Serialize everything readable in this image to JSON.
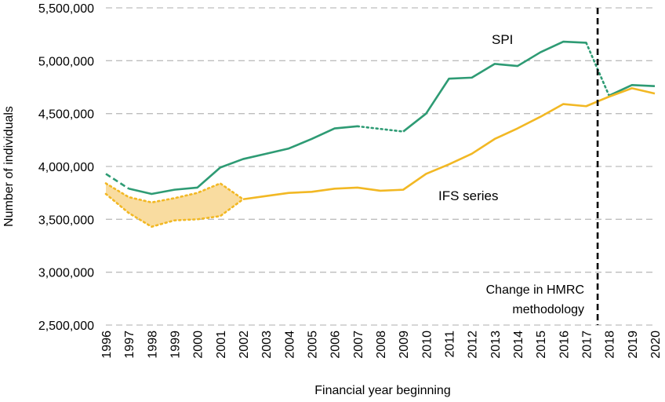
{
  "chart_data": {
    "type": "line",
    "xlabel": "Financial year beginning",
    "ylabel": "Number of individuals",
    "ylim": [
      2500000,
      5500000
    ],
    "yticks": [
      2500000,
      3000000,
      3500000,
      4000000,
      4500000,
      5000000,
      5500000
    ],
    "ytick_labels": [
      "2,500,000",
      "3,000,000",
      "3,500,000",
      "4,000,000",
      "4,500,000",
      "5,000,000",
      "5,500,000"
    ],
    "x": [
      "1996",
      "1997",
      "1998",
      "1999",
      "2000",
      "2001",
      "2002",
      "2003",
      "2004",
      "2005",
      "2006",
      "2007",
      "2008",
      "2009",
      "2010",
      "2011",
      "2012",
      "2013",
      "2014",
      "2015",
      "2016",
      "2017",
      "2018",
      "2019",
      "2020"
    ],
    "grid": "horizontal dashed",
    "series": [
      {
        "name": "SPI",
        "color": "#2E9B74",
        "values": [
          3930000,
          3790000,
          3740000,
          3780000,
          3800000,
          3990000,
          4070000,
          4120000,
          4170000,
          4260000,
          4360000,
          4380000,
          null,
          4330000,
          4500000,
          4830000,
          4840000,
          4970000,
          4950000,
          5080000,
          5180000,
          5170000,
          4670000,
          4770000,
          4760000
        ],
        "styles": "dashed 1996-1997, solid 1997-2007, dotted 2007-2009, solid 2009-2017, dotted 2017-2018, solid 2018-2020"
      },
      {
        "name": "IFS series",
        "color": "#F2B824",
        "values": [
          null,
          null,
          null,
          null,
          null,
          null,
          3690000,
          3720000,
          3750000,
          3760000,
          3790000,
          3800000,
          3770000,
          3780000,
          3930000,
          4020000,
          4120000,
          4260000,
          4360000,
          4470000,
          4590000,
          4570000,
          4660000,
          4740000,
          4690000
        ],
        "range_start": 1996,
        "range_end": 2001,
        "upper": [
          3840000,
          3710000,
          3660000,
          3700000,
          3750000,
          3840000,
          3690000
        ],
        "lower": [
          3740000,
          3560000,
          3430000,
          3490000,
          3500000,
          3530000,
          3690000
        ],
        "range_fill": "#F9DCA0"
      }
    ],
    "annotations": [
      {
        "text": "SPI",
        "color": "#2E9B74"
      },
      {
        "text": "IFS series",
        "color": "#F2B824"
      },
      {
        "text_lines": [
          "Change in HMRC",
          "methodology"
        ],
        "color": "#000000"
      }
    ],
    "vertical_line": {
      "at": "between 2017 and 2018",
      "style": "dashed black"
    }
  }
}
